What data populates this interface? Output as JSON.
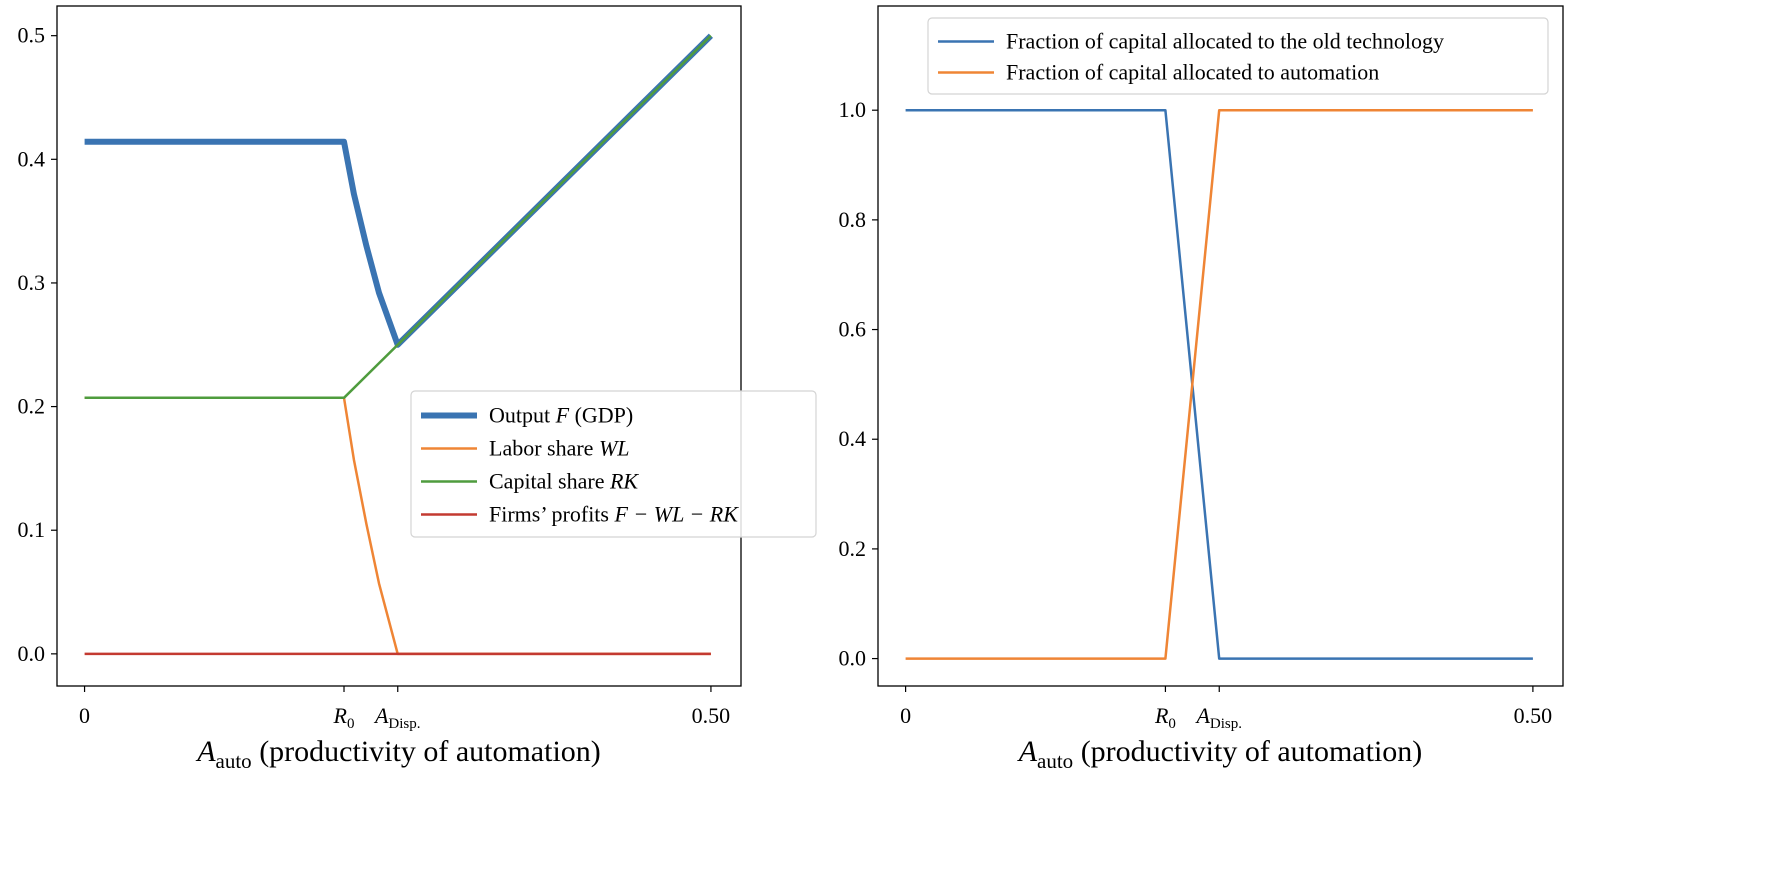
{
  "chart_data": [
    {
      "type": "line",
      "xlabel": {
        "main": "A",
        "sub": "auto",
        "rest": " (productivity of automation)"
      },
      "xlim": [
        -0.022,
        0.524
      ],
      "ylim": [
        -0.026,
        0.524
      ],
      "yticks": [
        0.0,
        0.1,
        0.2,
        0.3,
        0.4,
        0.5
      ],
      "ytick_labels": [
        "0.0",
        "0.1",
        "0.2",
        "0.3",
        "0.4",
        "0.5"
      ],
      "xticks": [
        {
          "value": 0,
          "label": "0",
          "sub": ""
        },
        {
          "value": 0.2071,
          "label": "R",
          "sub": "0",
          "math": true
        },
        {
          "value": 0.25,
          "label": "A",
          "sub": "Disp.",
          "math": true
        },
        {
          "value": 0.5,
          "label": "0.50",
          "sub": ""
        }
      ],
      "legend_placement": "center-right",
      "series": [
        {
          "name": "Output F (GDP)",
          "text": "Output ",
          "math": "F",
          "after": " (GDP)",
          "color": "#3a74b2",
          "width": 6,
          "x": [
            0,
            0.2071,
            0.215,
            0.225,
            0.235,
            0.25,
            0.5
          ],
          "y": [
            0.4142,
            0.4142,
            0.372,
            0.33,
            0.292,
            0.25,
            0.5
          ]
        },
        {
          "name": "Labor share WL",
          "text": "Labor share ",
          "math": "WL",
          "after": "",
          "color": "#ef8535",
          "width": 2.5,
          "x": [
            0,
            0.2071,
            0.215,
            0.225,
            0.235,
            0.25,
            0.5
          ],
          "y": [
            0.2071,
            0.2071,
            0.157,
            0.105,
            0.057,
            0,
            0
          ]
        },
        {
          "name": "Capital share RK",
          "text": "Capital share ",
          "math": "RK",
          "after": "",
          "color": "#4f9c3e",
          "width": 2.5,
          "x": [
            0,
            0.2071,
            0.25,
            0.5
          ],
          "y": [
            0.2071,
            0.2071,
            0.25,
            0.5
          ]
        },
        {
          "name": "Firms' profits F - WL - RK",
          "text": "Firms’ profits ",
          "math": "F − WL − RK",
          "after": "",
          "color": "#c33a31",
          "width": 2.5,
          "x": [
            0,
            0.5
          ],
          "y": [
            0,
            0
          ]
        }
      ]
    },
    {
      "type": "line",
      "xlabel": {
        "main": "A",
        "sub": "auto",
        "rest": " (productivity of automation)"
      },
      "xlim": [
        -0.022,
        0.524
      ],
      "ylim": [
        -0.05,
        1.19
      ],
      "yticks": [
        0.0,
        0.2,
        0.4,
        0.6,
        0.8,
        1.0
      ],
      "ytick_labels": [
        "0.0",
        "0.2",
        "0.4",
        "0.6",
        "0.8",
        "1.0"
      ],
      "xticks": [
        {
          "value": 0,
          "label": "0",
          "sub": ""
        },
        {
          "value": 0.2071,
          "label": "R",
          "sub": "0",
          "math": true
        },
        {
          "value": 0.25,
          "label": "A",
          "sub": "Disp.",
          "math": true
        },
        {
          "value": 0.5,
          "label": "0.50",
          "sub": ""
        }
      ],
      "legend_placement": "top-right",
      "series": [
        {
          "name": "Fraction of capital allocated to the old technology",
          "text": "Fraction of capital allocated to the old technology",
          "math": "",
          "after": "",
          "color": "#3a74b2",
          "width": 2.5,
          "x": [
            0,
            0.2071,
            0.25,
            0.5
          ],
          "y": [
            1,
            1,
            0,
            0
          ]
        },
        {
          "name": "Fraction of capital allocated to automation",
          "text": "Fraction of capital allocated to automation",
          "math": "",
          "after": "",
          "color": "#ef8535",
          "width": 2.5,
          "x": [
            0,
            0.2071,
            0.25,
            0.5
          ],
          "y": [
            0,
            0,
            1,
            1
          ]
        }
      ]
    }
  ]
}
